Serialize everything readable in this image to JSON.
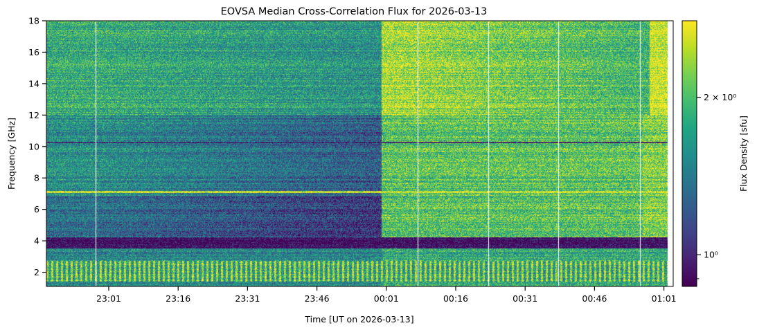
{
  "chart_data": {
    "type": "heatmap",
    "title": "EOVSA Median Cross-Correlation Flux for 2026-03-13",
    "xlabel": "Time [UT on 2026-03-13]",
    "ylabel": "Frequency [GHz]",
    "x_ticks": [
      "23:01",
      "23:16",
      "23:31",
      "23:46",
      "00:01",
      "00:16",
      "00:31",
      "00:46",
      "01:01"
    ],
    "y_ticks": [
      2,
      4,
      6,
      8,
      10,
      12,
      14,
      16,
      18
    ],
    "ylim": [
      1.1,
      18.0
    ],
    "colorbar": {
      "label": "Flux Density [sfu]",
      "scale": "log",
      "colormap": "viridis",
      "range": [
        0.87,
        2.8
      ],
      "ticks": [
        {
          "value": 2,
          "label": "2 × 10⁰"
        },
        {
          "value": 1,
          "label": "10⁰"
        }
      ]
    }
  }
}
